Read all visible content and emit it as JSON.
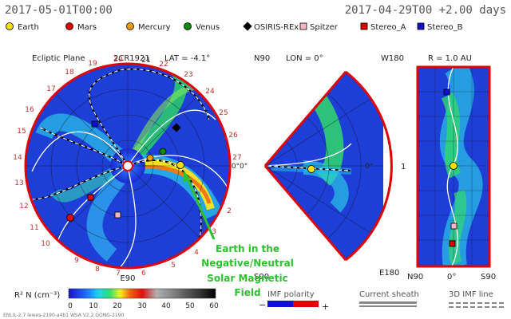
{
  "header": {
    "left_timestamp": "2017-05-01T00:00",
    "right_timestamp": "2017-04-29T00 +2.00 days"
  },
  "legend": {
    "items": [
      {
        "label": "Earth",
        "color": "#f4e000",
        "shape": "circle"
      },
      {
        "label": "Mars",
        "color": "#e00000",
        "shape": "circle"
      },
      {
        "label": "Mercury",
        "color": "#f39c00",
        "shape": "circle"
      },
      {
        "label": "Venus",
        "color": "#0a8a00",
        "shape": "circle"
      },
      {
        "label": "OSIRIS-REx",
        "color": "#000000",
        "shape": "diamond"
      },
      {
        "label": "Spitzer",
        "color": "#f4b6c2",
        "shape": "square"
      },
      {
        "label": "Stereo_A",
        "color": "#e00000",
        "shape": "square"
      },
      {
        "label": "Stereo_B",
        "color": "#1010d0",
        "shape": "square"
      }
    ]
  },
  "panel_ecliptic": {
    "title": "Ecliptic Plane",
    "cr_label": "2CR1921",
    "lat_label": "LAT = -4.1°",
    "sector_labels": [
      "2",
      "3",
      "4",
      "5",
      "6",
      "7",
      "8",
      "9",
      "10",
      "11",
      "12",
      "13",
      "14",
      "15",
      "16",
      "17",
      "18",
      "19",
      "20",
      "21",
      "22",
      "23",
      "24",
      "25",
      "26",
      "27"
    ],
    "bottom_label": "E90"
  },
  "panel_meridional": {
    "top_label": "N90",
    "lon_label": "LON = 0°",
    "left_zero": "0°",
    "right_zero": "0°",
    "bottom_label": "S90"
  },
  "panel_radial": {
    "top_left": "W180",
    "title": "R = 1.0 AU",
    "mid_left": "1",
    "bottom_left": "E180",
    "axis_left": "N90",
    "axis_mid": "0°",
    "axis_right": "S90"
  },
  "colorbar": {
    "label": "R² N (cm⁻³)",
    "ticks": [
      "0",
      "10",
      "20",
      "30",
      "40",
      "50",
      "60"
    ]
  },
  "imf_polarity": {
    "label": "IMF polarity",
    "minus": "−",
    "plus": "+"
  },
  "current_sheath": {
    "label": "Current sheath"
  },
  "imf_3d_line": {
    "label": "3D IMF line"
  },
  "annotation": {
    "lines": [
      "Earth in the",
      "Negative/Neutral",
      "Solar Magnetic",
      "Field"
    ],
    "color": "#2ec02e"
  },
  "footer": {
    "text": "ENLIL-2.7  lewes-2190-a4b1  WSA V2.2  GONG-2190"
  },
  "colors": {
    "boundary_red": "#e00000",
    "heliosheath_blue": "#1e3cd8",
    "background": "#ffffff"
  }
}
